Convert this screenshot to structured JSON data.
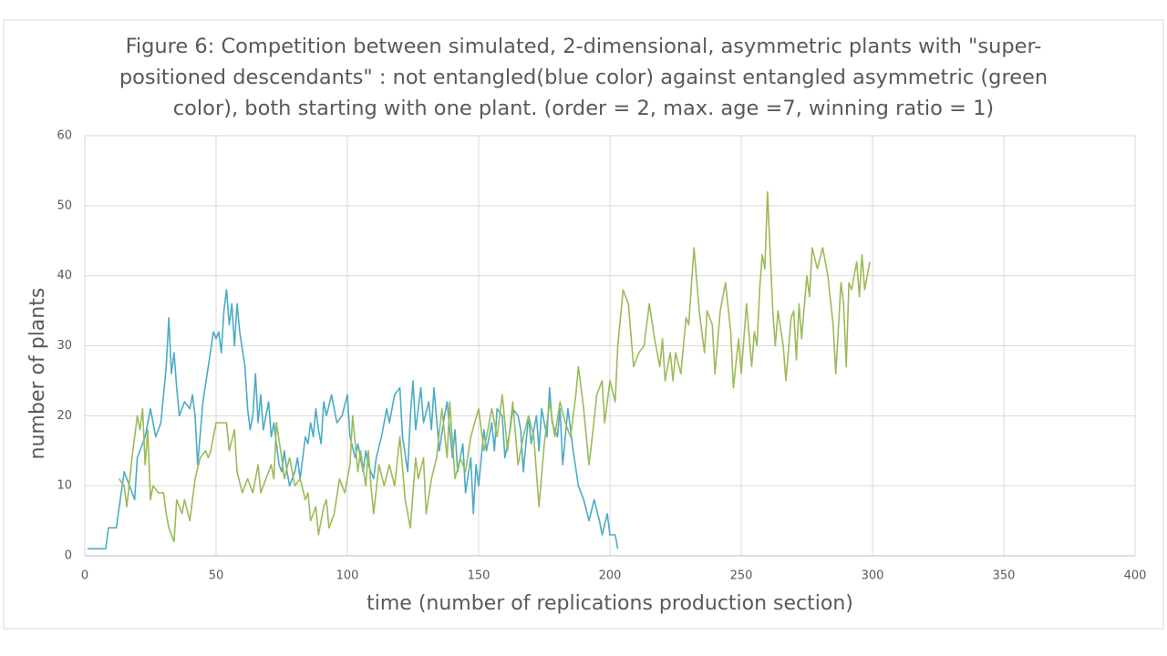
{
  "chart_data": {
    "type": "line",
    "title": "Figure 6: Competition between simulated, 2-dimensional, asymmetric plants with \"super-positioned descendants\" : not entangled(blue color) against entangled asymmetric (green color), both starting with one plant. (order = 2, max. age =7, winning ratio = 1)",
    "x_label": "time (number of replications production section)",
    "y_label": "number of plants",
    "xlim": [
      0,
      400
    ],
    "xticks": [
      0,
      50,
      100,
      150,
      200,
      250,
      300,
      350,
      400
    ],
    "ylim": [
      0,
      60
    ],
    "yticks": [
      0,
      10,
      20,
      30,
      40,
      50,
      60
    ],
    "grid": true,
    "series": [
      {
        "color": "#4bacc6",
        "x": [
          1,
          8,
          9,
          12,
          15,
          17,
          19,
          20,
          23,
          25,
          27,
          29,
          31,
          32,
          33,
          34,
          35,
          36,
          38,
          40,
          41,
          42,
          43,
          45,
          47,
          49,
          50,
          51,
          52,
          53,
          54,
          55,
          56,
          57,
          58,
          59,
          61,
          62,
          63,
          64,
          65,
          66,
          67,
          68,
          69,
          70,
          71,
          72,
          73,
          74,
          75,
          76,
          77,
          78,
          80,
          81,
          82,
          84,
          85,
          86,
          87,
          88,
          89,
          90,
          91,
          92,
          94,
          96,
          98,
          100,
          101,
          103,
          104,
          106,
          107,
          108,
          110,
          111,
          113,
          115,
          116,
          118,
          120,
          121,
          123,
          124,
          125,
          126,
          128,
          129,
          131,
          132,
          133,
          135,
          137,
          138,
          140,
          141,
          142,
          144,
          145,
          147,
          148,
          149,
          150,
          152,
          153,
          155,
          156,
          157,
          159,
          160,
          162,
          163,
          165,
          166,
          167,
          169,
          170,
          172,
          173,
          174,
          176,
          177,
          178,
          180,
          181,
          182,
          184,
          186,
          188,
          190,
          192,
          194,
          196,
          197,
          199,
          200,
          202,
          203
        ],
        "values": [
          1,
          1,
          4,
          4,
          12,
          10,
          8,
          14,
          17,
          21,
          17,
          19,
          27,
          34,
          26,
          29,
          24,
          20,
          22,
          21,
          23,
          20,
          13,
          22,
          27,
          32,
          31,
          32,
          29,
          35,
          38,
          33,
          36,
          30,
          36,
          32,
          27,
          21,
          18,
          20,
          26,
          19,
          23,
          18,
          20,
          22,
          17,
          19,
          16,
          13,
          12,
          15,
          12,
          10,
          12,
          14,
          11,
          17,
          16,
          19,
          17,
          21,
          18,
          16,
          22,
          20,
          23,
          19,
          20,
          23,
          17,
          14,
          16,
          12,
          15,
          13,
          11,
          14,
          17,
          21,
          19,
          23,
          24,
          17,
          12,
          20,
          25,
          18,
          24,
          19,
          22,
          18,
          24,
          15,
          20,
          22,
          14,
          18,
          12,
          16,
          9,
          14,
          6,
          13,
          10,
          18,
          15,
          19,
          15,
          21,
          20,
          14,
          18,
          21,
          20,
          18,
          12,
          20,
          16,
          20,
          15,
          21,
          17,
          24,
          19,
          17,
          21,
          13,
          21,
          15,
          10,
          8,
          5,
          8,
          5,
          3,
          6,
          3,
          3,
          1
        ]
      },
      {
        "color": "#9bbb59",
        "x": [
          13,
          15,
          16,
          18,
          20,
          21,
          22,
          23,
          24,
          25,
          26,
          28,
          30,
          31,
          32,
          34,
          35,
          37,
          38,
          40,
          42,
          44,
          46,
          47,
          48,
          50,
          54,
          55,
          57,
          58,
          60,
          62,
          64,
          66,
          67,
          69,
          71,
          72,
          73,
          75,
          76,
          78,
          80,
          82,
          84,
          85,
          86,
          88,
          89,
          91,
          92,
          93,
          95,
          97,
          99,
          101,
          102,
          104,
          105,
          107,
          108,
          109,
          110,
          112,
          114,
          116,
          118,
          120,
          122,
          124,
          126,
          127,
          129,
          130,
          132,
          134,
          136,
          138,
          139,
          141,
          143,
          145,
          147,
          150,
          152,
          154,
          155,
          157,
          159,
          161,
          163,
          165,
          167,
          169,
          171,
          173,
          175,
          177,
          179,
          181,
          183,
          185,
          187,
          188,
          190,
          192,
          193,
          195,
          197,
          198,
          200,
          202,
          203,
          205,
          207,
          209,
          211,
          213,
          215,
          217,
          219,
          220,
          221,
          223,
          224,
          225,
          227,
          229,
          230,
          232,
          234,
          236,
          237,
          239,
          240,
          242,
          244,
          246,
          247,
          249,
          250,
          252,
          254,
          255,
          256,
          257,
          258,
          259,
          260,
          262,
          263,
          264,
          266,
          267,
          269,
          270,
          271,
          272,
          273,
          275,
          276,
          277,
          279,
          281,
          282,
          283,
          285,
          286,
          288,
          289,
          290,
          291,
          292,
          294,
          295,
          296,
          297,
          299
        ],
        "values": [
          11,
          10,
          7,
          14,
          20,
          18,
          21,
          13,
          18,
          8,
          10,
          9,
          9,
          6,
          4,
          2,
          8,
          6,
          8,
          5,
          11,
          14,
          15,
          14,
          15,
          19,
          19,
          15,
          18,
          12,
          9,
          11,
          9,
          13,
          9,
          11,
          13,
          11,
          19,
          14,
          11,
          14,
          10,
          11,
          8,
          9,
          5,
          7,
          3,
          7,
          8,
          4,
          6,
          11,
          9,
          13,
          20,
          12,
          15,
          10,
          15,
          10,
          6,
          13,
          10,
          13,
          10,
          17,
          8,
          4,
          14,
          11,
          14,
          6,
          11,
          14,
          21,
          14,
          22,
          11,
          14,
          12,
          17,
          21,
          15,
          19,
          21,
          17,
          23,
          15,
          22,
          13,
          17,
          20,
          17,
          7,
          16,
          22,
          17,
          22,
          19,
          17,
          23,
          27,
          21,
          13,
          16,
          23,
          25,
          19,
          25,
          22,
          30,
          38,
          36,
          27,
          29,
          30,
          36,
          31,
          27,
          31,
          25,
          29,
          25,
          29,
          26,
          34,
          33,
          44,
          35,
          29,
          35,
          33,
          26,
          35,
          39,
          32,
          24,
          31,
          26,
          36,
          27,
          32,
          30,
          38,
          43,
          41,
          52,
          35,
          30,
          35,
          30,
          25,
          34,
          35,
          28,
          36,
          31,
          40,
          37,
          44,
          41,
          44,
          42,
          40,
          33,
          26,
          39,
          36,
          27,
          39,
          38,
          42,
          37,
          43,
          38,
          42
        ]
      }
    ]
  }
}
